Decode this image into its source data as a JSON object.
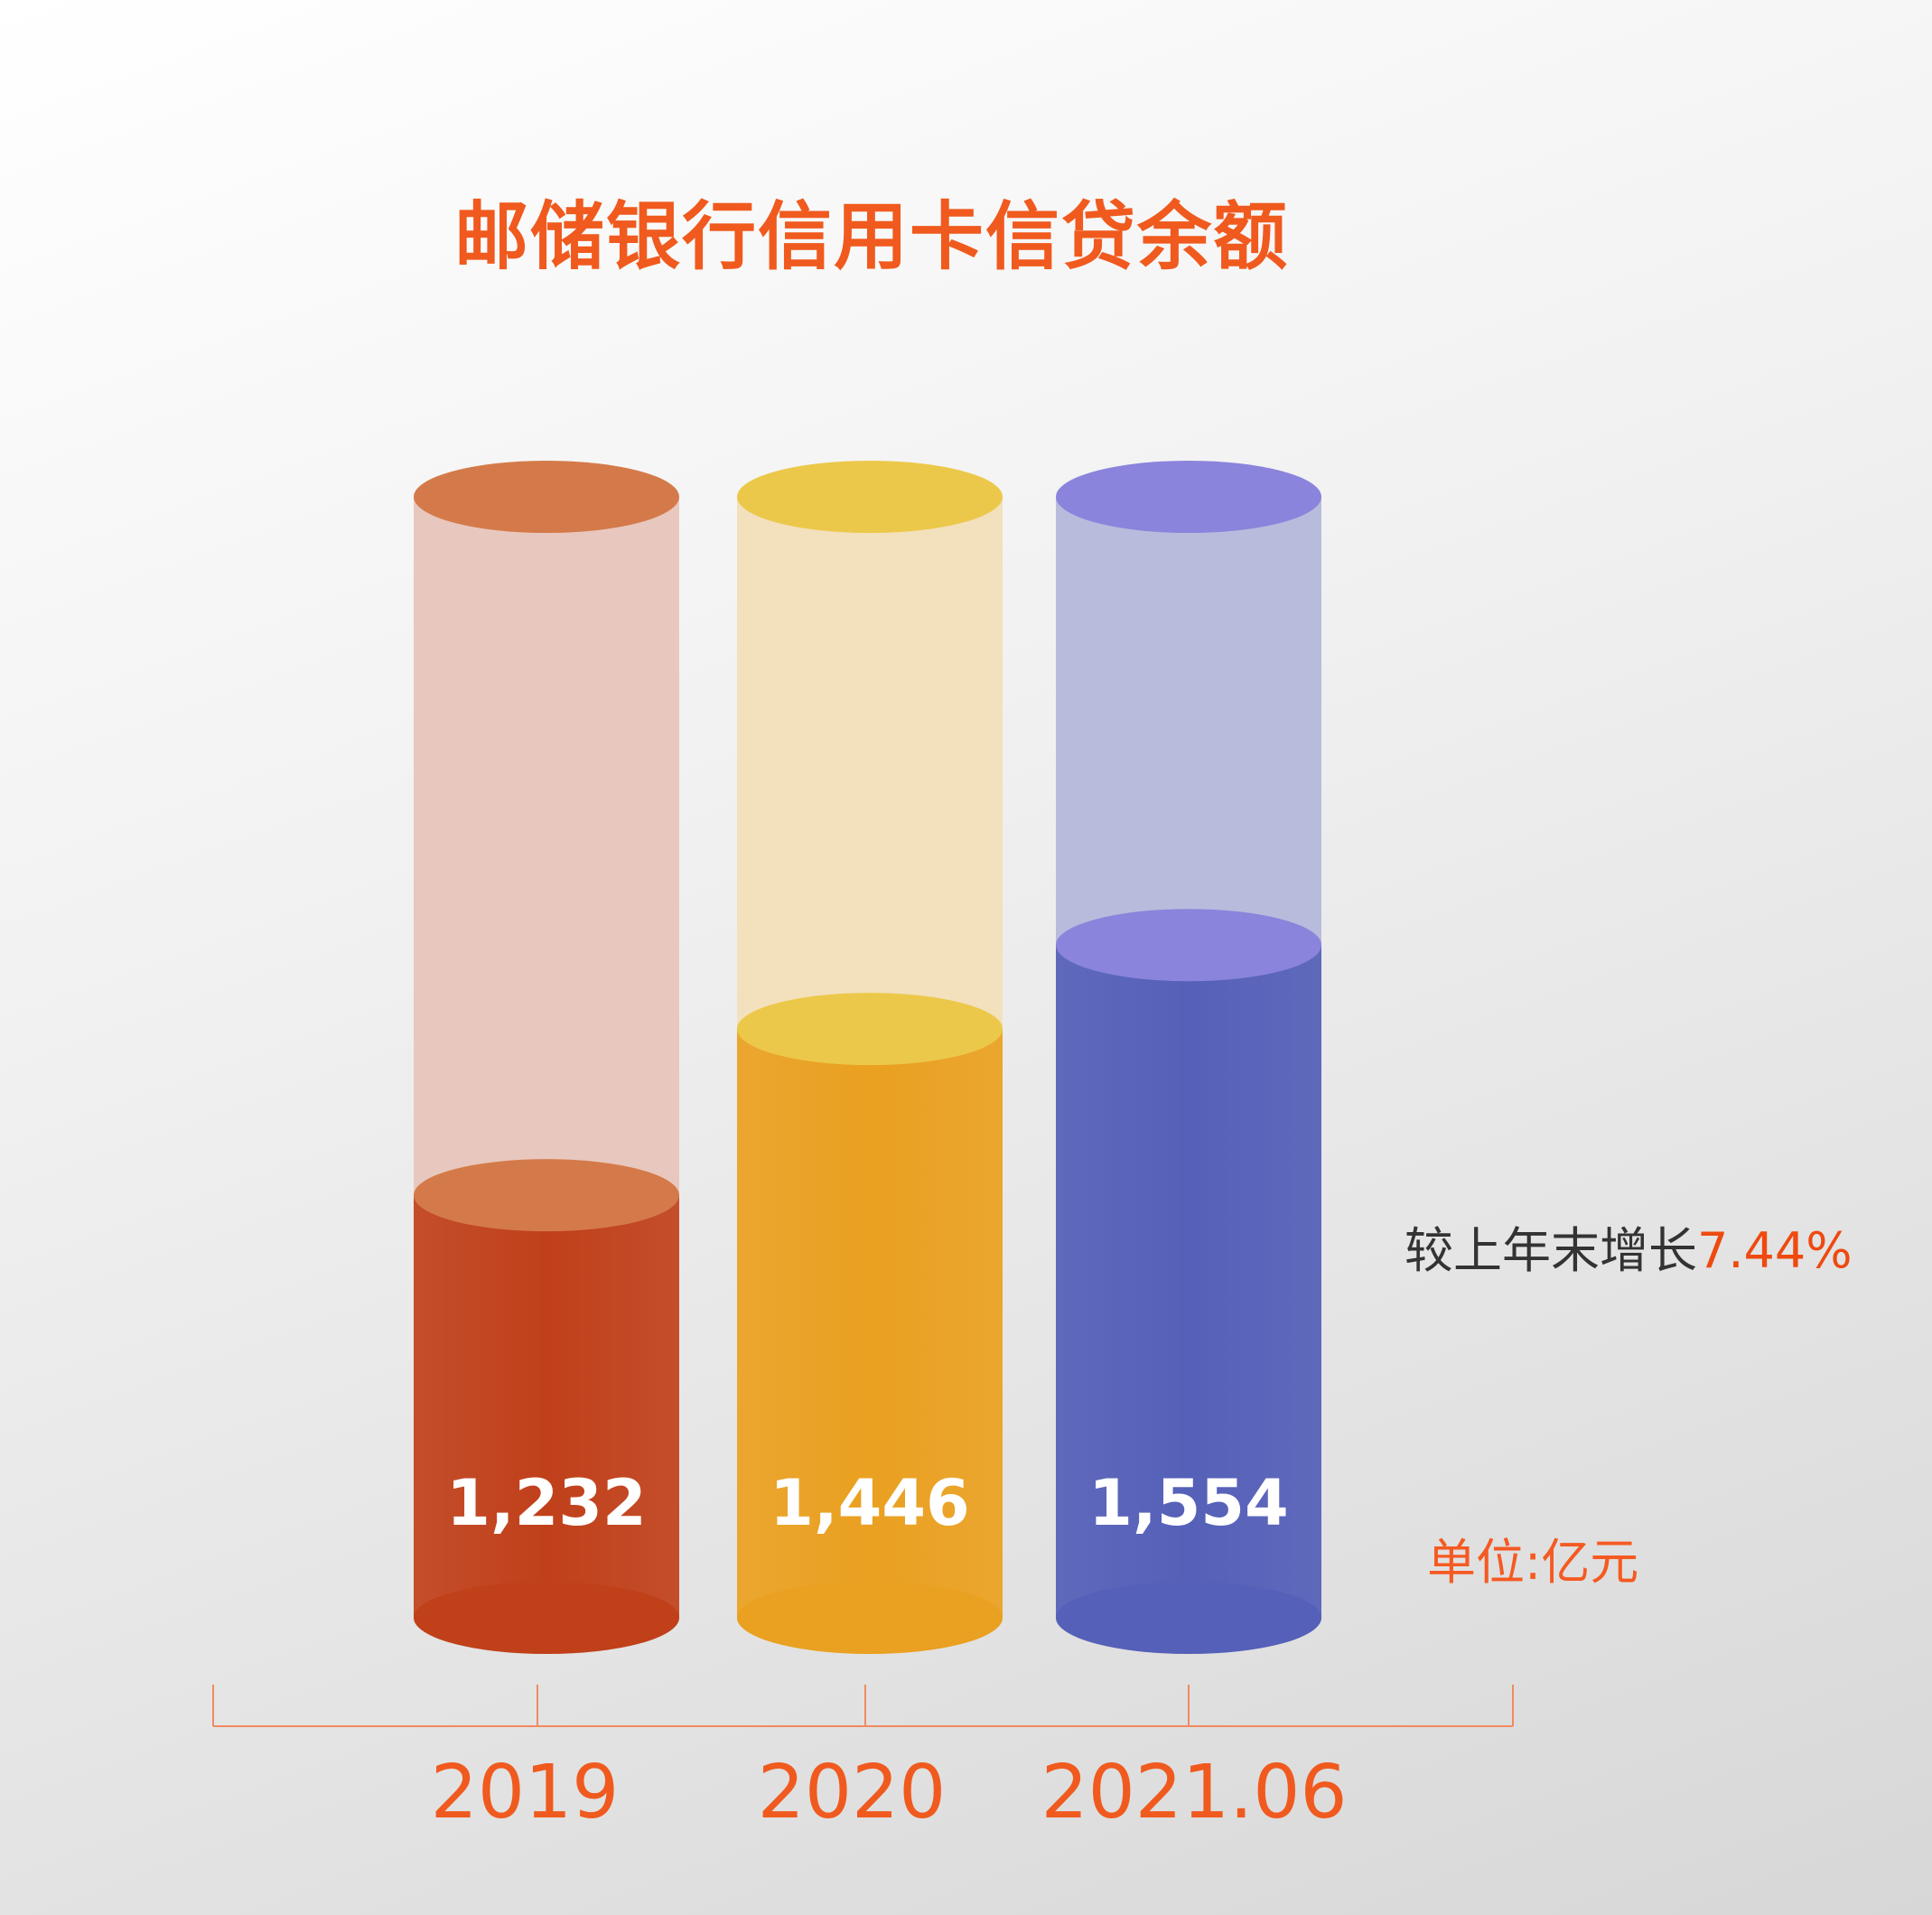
{
  "chart_data": {
    "type": "bar",
    "title": "邮储银行信用卡信贷余额",
    "categories": [
      "2019",
      "2020",
      "2021.06"
    ],
    "values": [
      1232,
      1446,
      1554
    ],
    "value_labels": [
      "1,232",
      "1,446",
      "1,554"
    ],
    "unit": "单位:亿元",
    "annotation": {
      "text": "较上年末增长",
      "value": "7.44%"
    },
    "style": "3d-cylinder",
    "grid": false,
    "colors": [
      "#c0401a",
      "#eaa020",
      "#5560b8"
    ],
    "cap_colors": [
      "#d47a4a",
      "#ecc84a",
      "#8a84dc"
    ],
    "ghost_colors": [
      "#e8c8be",
      "#f3e0bc",
      "#b8bcdc"
    ]
  }
}
